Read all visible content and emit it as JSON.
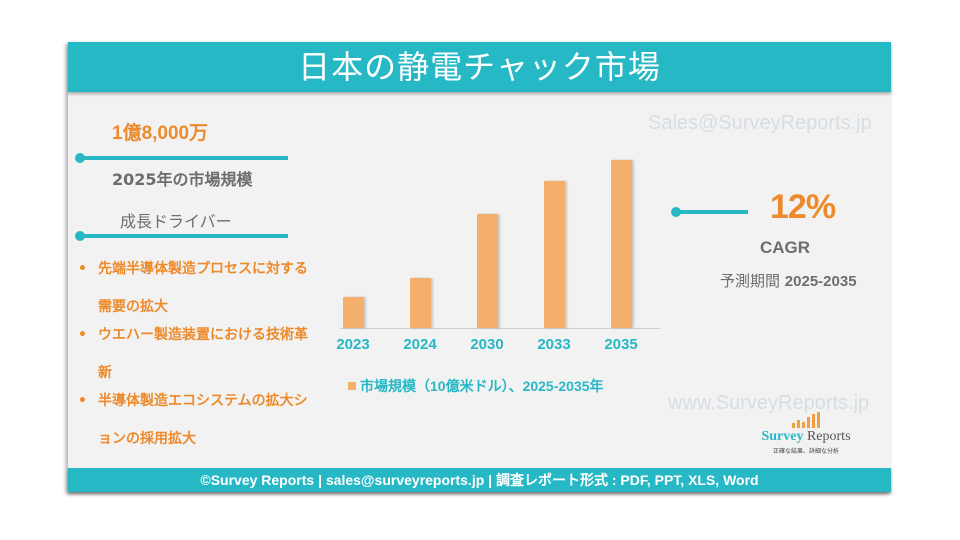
{
  "header": {
    "title": "日本の静電チャック市場"
  },
  "watermarks": {
    "top": "Sales@SurveyReports.jp",
    "bottom": "www.SurveyReports.jp"
  },
  "market_size": {
    "value": "1億8,000万",
    "label": "2025年の市場規模"
  },
  "drivers": {
    "title": "成長ドライバー",
    "bullet": "•",
    "items": [
      {
        "line1": "先端半導体製造プロセスに対する",
        "line2": "需要の拡大"
      },
      {
        "line1": "ウエハー製造装置における技術革",
        "line2": "新"
      },
      {
        "line1": "半導体製造エコシステムの拡大シ",
        "line2": "ョンの採用拡大"
      }
    ]
  },
  "cagr": {
    "value": "12%",
    "label": "CAGR",
    "period_label": "予測期間",
    "period": "2025-2035"
  },
  "logo": {
    "name_part1": "Survey",
    "name_part2": " Reports",
    "tagline": "正確な結果、詳細な分析"
  },
  "footer": {
    "text": "©Survey Reports | sales@surveyreports.jp |  調査レポート形式 : PDF, PPT, XLS, Word"
  },
  "colors": {
    "accent": "#27b8c6",
    "bar": "#f4b06a",
    "highlight": "#ec8a2c",
    "text_gray": "#6d6d6d",
    "background": "#f2f2f2"
  },
  "chart_data": {
    "type": "bar",
    "title": "日本の静電チャック市場",
    "categories": [
      "2023",
      "2024",
      "2030",
      "2033",
      "2035"
    ],
    "series": [
      {
        "name": "市場規模（10億米ドル）、2025-2035年",
        "values": [
          0.15,
          0.24,
          0.55,
          0.71,
          0.81
        ]
      }
    ],
    "values_note": "Relative bar heights; no y-axis shown",
    "xlabel": "",
    "ylabel": "",
    "grid": false,
    "legend_position": "bottom",
    "legend": [
      "市場規模（10億米ドル）、2025-2035年"
    ]
  }
}
